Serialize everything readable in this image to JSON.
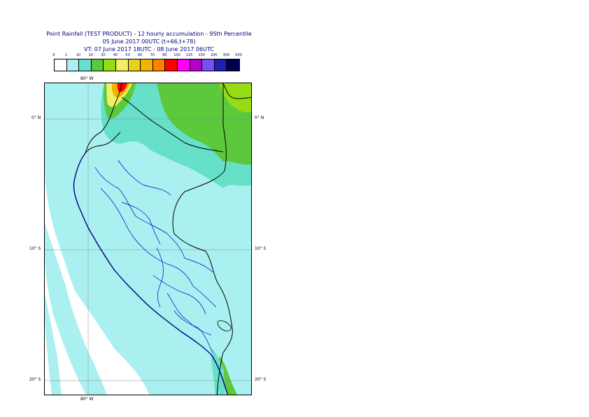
{
  "title": {
    "line1": "Point Rainfall (TEST PRODUCT) - 12 hourly accumulation - 95th Percentile",
    "line2": "05 June 2017 00UTC (t+66,t+78)",
    "line3": "VT: 07 June 2017 18UTC - 08 June 2017 06UTC"
  },
  "legend": {
    "labels": [
      "0",
      "1",
      "10",
      "20",
      "30",
      "40",
      "50",
      "60",
      "70",
      "80",
      "100",
      "125",
      "150",
      "200",
      "300",
      "500"
    ],
    "colors": [
      "#ffffff",
      "#aaf0f0",
      "#66e0c8",
      "#5cc83c",
      "#96dc14",
      "#f0f064",
      "#e6d21e",
      "#f0b400",
      "#ff8200",
      "#ff0000",
      "#ff00ff",
      "#b400c8",
      "#7850f0",
      "#1e1eb4",
      "#000050"
    ]
  },
  "map": {
    "lon_labels_top": [
      "80° W"
    ],
    "lon_labels_bottom": [
      "80° W"
    ],
    "lat_labels_left": [
      "0° N",
      "10° S",
      "20° S"
    ],
    "lat_labels_right": [
      "0° N",
      "10° S",
      "20° S"
    ],
    "colors": {
      "low_rain": "#aaf0f0",
      "mid_rain": "#66e0c8",
      "high_rain": "#5cc83c",
      "very_high": "#96dc14",
      "peak_yellow": "#f0f064",
      "peak_orange": "#f0b400",
      "peak_red": "#ff0000",
      "country_border": "#000000",
      "admin_border": "#0000c8",
      "grid": "#888888"
    }
  }
}
